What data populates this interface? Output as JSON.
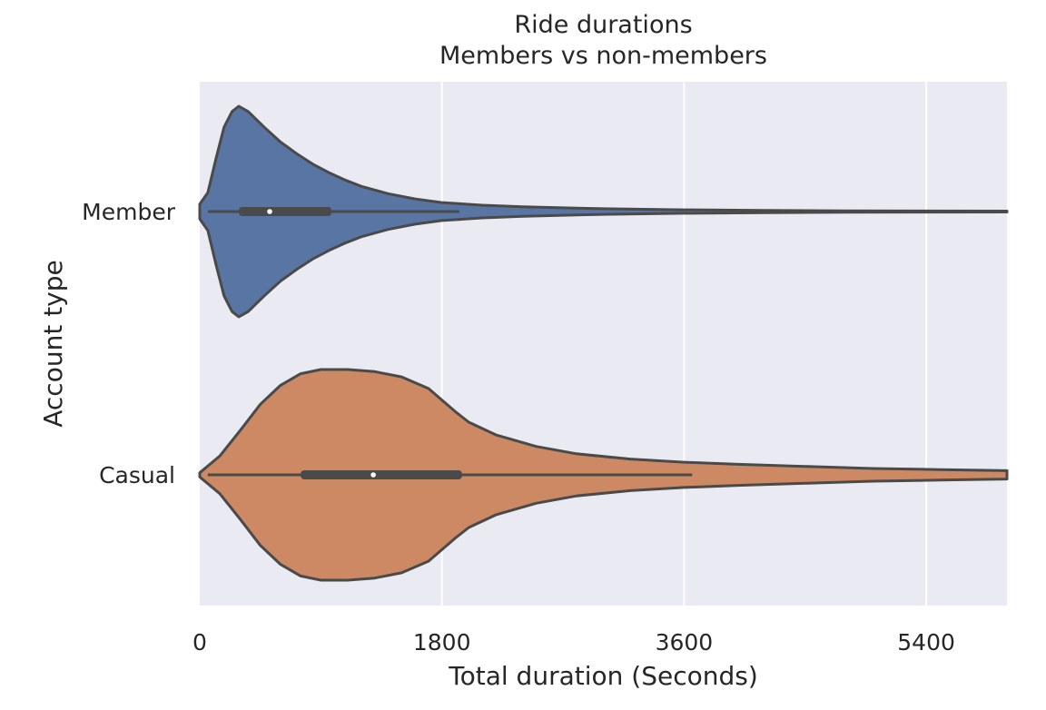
{
  "chart_data": {
    "type": "violin",
    "orientation": "horizontal",
    "title": "Ride durations",
    "subtitle": "Members vs non-members",
    "xlabel": "Total duration (Seconds)",
    "ylabel": "Account type",
    "xlim": [
      0,
      6000
    ],
    "xticks": [
      0,
      1800,
      3600,
      5400
    ],
    "grid": true,
    "categories": [
      "Member",
      "Casual"
    ],
    "colors": {
      "Member": "#5875a4",
      "Casual": "#cc8963",
      "outline": "#4a4a4a",
      "background": "#eaeaf2",
      "grid": "#ffffff"
    },
    "violins": [
      {
        "category": "Member",
        "box": {
          "whisker_low": 60,
          "q1": 290,
          "median": 520,
          "q3": 980,
          "whisker_high": 1930
        },
        "density": [
          [
            0,
            0.07
          ],
          [
            60,
            0.18
          ],
          [
            120,
            0.5
          ],
          [
            180,
            0.8
          ],
          [
            240,
            0.95
          ],
          [
            290,
            1.0
          ],
          [
            360,
            0.95
          ],
          [
            480,
            0.8
          ],
          [
            600,
            0.66
          ],
          [
            720,
            0.55
          ],
          [
            840,
            0.45
          ],
          [
            960,
            0.37
          ],
          [
            1080,
            0.3
          ],
          [
            1200,
            0.24
          ],
          [
            1400,
            0.17
          ],
          [
            1600,
            0.12
          ],
          [
            1800,
            0.085
          ],
          [
            2100,
            0.06
          ],
          [
            2400,
            0.045
          ],
          [
            2700,
            0.035
          ],
          [
            3000,
            0.027
          ],
          [
            3600,
            0.016
          ],
          [
            4200,
            0.01
          ],
          [
            4800,
            0.007
          ],
          [
            5400,
            0.005
          ],
          [
            6000,
            0.004
          ]
        ]
      },
      {
        "category": "Casual",
        "box": {
          "whisker_low": 60,
          "q1": 750,
          "median": 1290,
          "q3": 1950,
          "whisker_high": 3660
        },
        "density": [
          [
            0,
            0.02
          ],
          [
            150,
            0.18
          ],
          [
            300,
            0.42
          ],
          [
            450,
            0.67
          ],
          [
            600,
            0.85
          ],
          [
            750,
            0.96
          ],
          [
            900,
            1.0
          ],
          [
            1100,
            1.0
          ],
          [
            1300,
            0.98
          ],
          [
            1500,
            0.93
          ],
          [
            1700,
            0.82
          ],
          [
            1800,
            0.71
          ],
          [
            1900,
            0.6
          ],
          [
            2000,
            0.5
          ],
          [
            2200,
            0.38
          ],
          [
            2500,
            0.27
          ],
          [
            2800,
            0.2
          ],
          [
            3200,
            0.15
          ],
          [
            3600,
            0.12
          ],
          [
            4000,
            0.1
          ],
          [
            4500,
            0.08
          ],
          [
            5000,
            0.06
          ],
          [
            5500,
            0.05
          ],
          [
            6000,
            0.04
          ]
        ]
      }
    ]
  }
}
